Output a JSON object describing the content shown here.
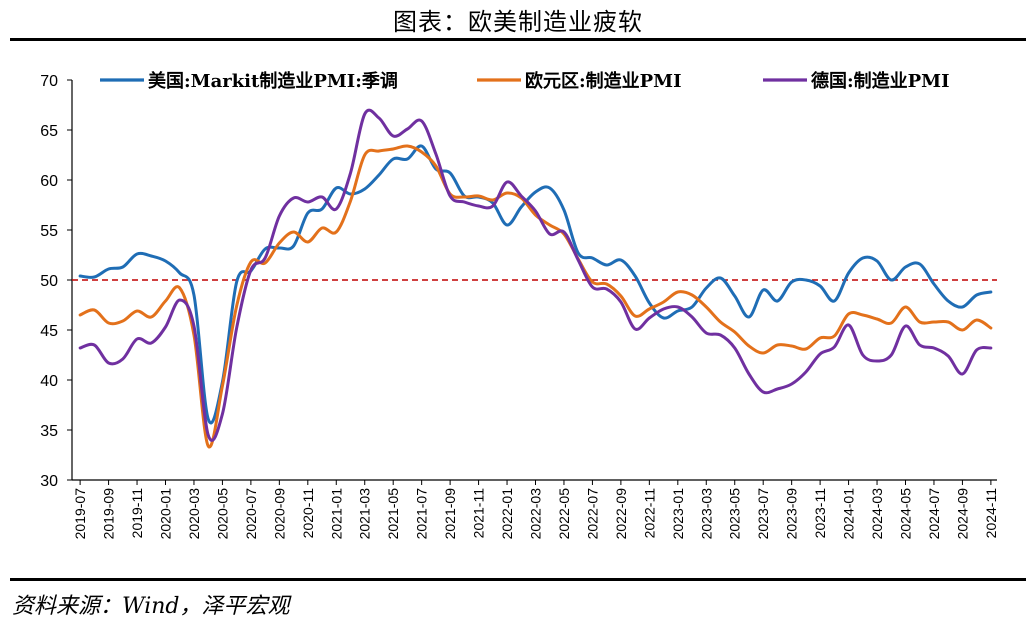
{
  "page": {
    "title": "图表：欧美制造业疲软",
    "source": "资料来源：Wind，泽平宏观"
  },
  "chart_data": {
    "type": "line",
    "ylim": [
      30,
      70
    ],
    "yticks": [
      30,
      35,
      40,
      45,
      50,
      55,
      60,
      65,
      70
    ],
    "x_start": "2019-07",
    "x": [
      "2019-07",
      "2019-08",
      "2019-09",
      "2019-10",
      "2019-11",
      "2019-12",
      "2020-01",
      "2020-02",
      "2020-03",
      "2020-04",
      "2020-05",
      "2020-06",
      "2020-07",
      "2020-08",
      "2020-09",
      "2020-10",
      "2020-11",
      "2020-12",
      "2021-01",
      "2021-02",
      "2021-03",
      "2021-04",
      "2021-05",
      "2021-06",
      "2021-07",
      "2021-08",
      "2021-09",
      "2021-10",
      "2021-11",
      "2021-12",
      "2022-01",
      "2022-02",
      "2022-03",
      "2022-04",
      "2022-05",
      "2022-06",
      "2022-07",
      "2022-08",
      "2022-09",
      "2022-10",
      "2022-11",
      "2022-12",
      "2023-01",
      "2023-02",
      "2023-03",
      "2023-04",
      "2023-05",
      "2023-06",
      "2023-07",
      "2023-08",
      "2023-09",
      "2023-10",
      "2023-11",
      "2023-12",
      "2024-01",
      "2024-02",
      "2024-03",
      "2024-04",
      "2024-05",
      "2024-06",
      "2024-07",
      "2024-08",
      "2024-09",
      "2024-10",
      "2024-11"
    ],
    "xticklabels": [
      "2019-07",
      "2019-09",
      "2019-11",
      "2020-01",
      "2020-03",
      "2020-05",
      "2020-07",
      "2020-09",
      "2020-11",
      "2021-01",
      "2021-03",
      "2021-05",
      "2021-07",
      "2021-09",
      "2021-11",
      "2022-01",
      "2022-03",
      "2022-05",
      "2022-07",
      "2022-09",
      "2022-11",
      "2023-01",
      "2023-03",
      "2023-05",
      "2023-07",
      "2023-09",
      "2023-11",
      "2024-01",
      "2024-03",
      "2024-05",
      "2024-07",
      "2024-09",
      "2024-11"
    ],
    "reference_line": {
      "y": 50,
      "color": "#c00000",
      "style": "dashed"
    },
    "legend_placement": "top",
    "series": [
      {
        "name": "美国:Markit制造业PMI:季调",
        "color": "#1f6db5",
        "values": [
          50.4,
          50.3,
          51.1,
          51.3,
          52.6,
          52.4,
          51.9,
          50.7,
          48.5,
          36.1,
          39.8,
          49.8,
          50.9,
          53.1,
          53.2,
          53.4,
          56.7,
          57.1,
          59.2,
          58.6,
          59.1,
          60.5,
          62.1,
          62.1,
          63.4,
          61.1,
          60.7,
          58.4,
          58.3,
          57.7,
          55.5,
          57.3,
          58.8,
          59.2,
          57.0,
          52.7,
          52.2,
          51.5,
          52.0,
          50.4,
          47.7,
          46.2,
          46.9,
          47.3,
          49.2,
          50.2,
          48.4,
          46.3,
          49.0,
          47.9,
          49.8,
          50.0,
          49.4,
          47.9,
          50.7,
          52.2,
          51.9,
          50.0,
          51.3,
          51.6,
          49.6,
          47.9,
          47.3,
          48.5,
          48.8
        ]
      },
      {
        "name": "欧元区:制造业PMI",
        "color": "#e3711b",
        "values": [
          46.5,
          47.0,
          45.7,
          45.9,
          46.9,
          46.3,
          47.9,
          49.2,
          44.5,
          33.4,
          39.4,
          47.4,
          51.8,
          51.7,
          53.7,
          54.8,
          53.8,
          55.2,
          54.8,
          57.9,
          62.5,
          62.9,
          63.1,
          63.4,
          62.8,
          61.4,
          58.6,
          58.3,
          58.4,
          58.0,
          58.7,
          58.2,
          56.5,
          55.5,
          54.6,
          52.1,
          49.8,
          49.6,
          48.4,
          46.4,
          47.1,
          47.8,
          48.8,
          48.5,
          47.3,
          45.8,
          44.8,
          43.4,
          42.7,
          43.5,
          43.4,
          43.1,
          44.2,
          44.4,
          46.6,
          46.5,
          46.1,
          45.7,
          47.3,
          45.8,
          45.8,
          45.8,
          45.0,
          46.0,
          45.2
        ]
      },
      {
        "name": "德国:制造业PMI",
        "color": "#7030a0",
        "values": [
          43.2,
          43.5,
          41.7,
          42.1,
          44.1,
          43.7,
          45.3,
          48.0,
          45.4,
          34.5,
          36.6,
          45.2,
          51.0,
          52.2,
          56.4,
          58.2,
          57.8,
          58.3,
          57.1,
          60.7,
          66.6,
          66.2,
          64.4,
          65.1,
          65.9,
          62.6,
          58.4,
          57.8,
          57.4,
          57.4,
          59.8,
          58.4,
          56.9,
          54.6,
          54.8,
          52.0,
          49.3,
          49.1,
          47.8,
          45.1,
          46.2,
          47.1,
          47.3,
          46.3,
          44.7,
          44.5,
          43.2,
          40.6,
          38.8,
          39.1,
          39.6,
          40.8,
          42.6,
          43.3,
          45.5,
          42.5,
          41.9,
          42.5,
          45.4,
          43.5,
          43.2,
          42.4,
          40.6,
          43.0,
          43.2
        ]
      }
    ]
  }
}
